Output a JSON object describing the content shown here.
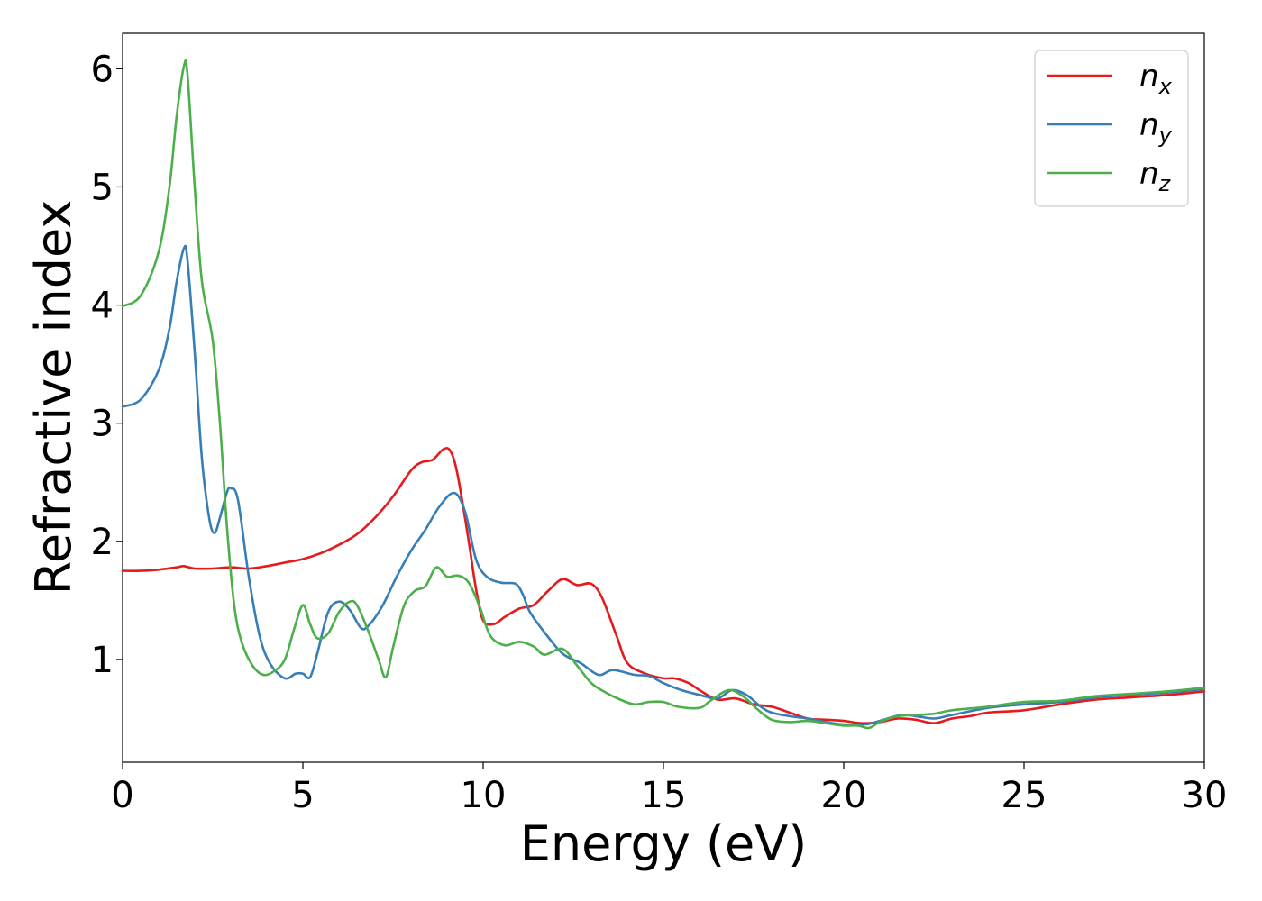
{
  "chart_data": {
    "type": "line",
    "title": "",
    "xlabel": "Energy (eV)",
    "ylabel": "Refractive index",
    "xlim": [
      0,
      30
    ],
    "ylim": [
      0.13,
      6.3
    ],
    "xticks": [
      0,
      5,
      10,
      15,
      20,
      25,
      30
    ],
    "yticks": [
      1,
      2,
      3,
      4,
      5,
      6
    ],
    "grid": false,
    "legend_position": "top-right",
    "series": [
      {
        "name": "n",
        "subscript": "x",
        "color": "#e41a1c",
        "points": [
          [
            0,
            1.75
          ],
          [
            0.5,
            1.75
          ],
          [
            1.0,
            1.76
          ],
          [
            1.5,
            1.78
          ],
          [
            1.7,
            1.79
          ],
          [
            2.0,
            1.77
          ],
          [
            2.5,
            1.77
          ],
          [
            3.0,
            1.78
          ],
          [
            3.5,
            1.77
          ],
          [
            4.0,
            1.79
          ],
          [
            4.5,
            1.82
          ],
          [
            5.0,
            1.85
          ],
          [
            5.5,
            1.9
          ],
          [
            6.0,
            1.97
          ],
          [
            6.5,
            2.06
          ],
          [
            7.0,
            2.2
          ],
          [
            7.5,
            2.38
          ],
          [
            8.0,
            2.6
          ],
          [
            8.3,
            2.67
          ],
          [
            8.6,
            2.69
          ],
          [
            8.9,
            2.78
          ],
          [
            9.1,
            2.76
          ],
          [
            9.3,
            2.55
          ],
          [
            9.6,
            2.0
          ],
          [
            9.8,
            1.6
          ],
          [
            10.0,
            1.33
          ],
          [
            10.3,
            1.3
          ],
          [
            10.6,
            1.36
          ],
          [
            11.0,
            1.43
          ],
          [
            11.4,
            1.46
          ],
          [
            11.8,
            1.58
          ],
          [
            12.2,
            1.68
          ],
          [
            12.6,
            1.63
          ],
          [
            13.0,
            1.64
          ],
          [
            13.3,
            1.52
          ],
          [
            13.7,
            1.2
          ],
          [
            14.0,
            0.97
          ],
          [
            14.5,
            0.88
          ],
          [
            15.0,
            0.84
          ],
          [
            15.3,
            0.84
          ],
          [
            15.7,
            0.8
          ],
          [
            16.0,
            0.74
          ],
          [
            16.5,
            0.66
          ],
          [
            17.0,
            0.67
          ],
          [
            17.5,
            0.62
          ],
          [
            18.0,
            0.6
          ],
          [
            18.5,
            0.55
          ],
          [
            19.0,
            0.5
          ],
          [
            19.5,
            0.49
          ],
          [
            20.0,
            0.48
          ],
          [
            20.5,
            0.46
          ],
          [
            21.0,
            0.47
          ],
          [
            21.5,
            0.5
          ],
          [
            22.0,
            0.49
          ],
          [
            22.5,
            0.46
          ],
          [
            23.0,
            0.5
          ],
          [
            23.5,
            0.52
          ],
          [
            24.0,
            0.55
          ],
          [
            25.0,
            0.57
          ],
          [
            26.0,
            0.62
          ],
          [
            27.0,
            0.66
          ],
          [
            28.0,
            0.68
          ],
          [
            29.0,
            0.7
          ],
          [
            30.0,
            0.73
          ]
        ]
      },
      {
        "name": "n",
        "subscript": "y",
        "color": "#377eb8",
        "points": [
          [
            0,
            3.14
          ],
          [
            0.5,
            3.2
          ],
          [
            1.0,
            3.45
          ],
          [
            1.3,
            3.8
          ],
          [
            1.5,
            4.2
          ],
          [
            1.7,
            4.48
          ],
          [
            1.8,
            4.38
          ],
          [
            2.0,
            3.6
          ],
          [
            2.2,
            2.7
          ],
          [
            2.4,
            2.2
          ],
          [
            2.55,
            2.07
          ],
          [
            2.7,
            2.2
          ],
          [
            2.9,
            2.42
          ],
          [
            3.0,
            2.45
          ],
          [
            3.2,
            2.35
          ],
          [
            3.5,
            1.7
          ],
          [
            3.8,
            1.2
          ],
          [
            4.1,
            0.96
          ],
          [
            4.5,
            0.84
          ],
          [
            4.8,
            0.88
          ],
          [
            5.0,
            0.88
          ],
          [
            5.2,
            0.85
          ],
          [
            5.4,
            1.05
          ],
          [
            5.7,
            1.4
          ],
          [
            6.0,
            1.49
          ],
          [
            6.3,
            1.42
          ],
          [
            6.6,
            1.27
          ],
          [
            6.8,
            1.28
          ],
          [
            7.2,
            1.45
          ],
          [
            7.6,
            1.7
          ],
          [
            8.0,
            1.92
          ],
          [
            8.4,
            2.1
          ],
          [
            8.8,
            2.3
          ],
          [
            9.2,
            2.41
          ],
          [
            9.5,
            2.25
          ],
          [
            9.8,
            1.85
          ],
          [
            10.1,
            1.7
          ],
          [
            10.5,
            1.65
          ],
          [
            10.9,
            1.64
          ],
          [
            11.1,
            1.55
          ],
          [
            11.3,
            1.4
          ],
          [
            11.7,
            1.23
          ],
          [
            12.2,
            1.05
          ],
          [
            12.7,
            0.97
          ],
          [
            13.2,
            0.87
          ],
          [
            13.6,
            0.91
          ],
          [
            14.2,
            0.87
          ],
          [
            14.6,
            0.86
          ],
          [
            15.0,
            0.8
          ],
          [
            15.5,
            0.74
          ],
          [
            16.0,
            0.7
          ],
          [
            16.5,
            0.67
          ],
          [
            16.9,
            0.74
          ],
          [
            17.3,
            0.7
          ],
          [
            17.7,
            0.6
          ],
          [
            18.0,
            0.55
          ],
          [
            18.5,
            0.52
          ],
          [
            19.0,
            0.5
          ],
          [
            19.5,
            0.47
          ],
          [
            20.0,
            0.45
          ],
          [
            20.6,
            0.45
          ],
          [
            21.0,
            0.48
          ],
          [
            21.6,
            0.53
          ],
          [
            22.0,
            0.52
          ],
          [
            22.5,
            0.5
          ],
          [
            23.0,
            0.53
          ],
          [
            24.0,
            0.59
          ],
          [
            25.0,
            0.62
          ],
          [
            26.0,
            0.64
          ],
          [
            27.0,
            0.68
          ],
          [
            28.0,
            0.7
          ],
          [
            29.0,
            0.72
          ],
          [
            30.0,
            0.75
          ]
        ]
      },
      {
        "name": "n",
        "subscript": "z",
        "color": "#4daf4a",
        "points": [
          [
            0,
            3.99
          ],
          [
            0.5,
            4.08
          ],
          [
            1.0,
            4.45
          ],
          [
            1.3,
            5.0
          ],
          [
            1.5,
            5.6
          ],
          [
            1.7,
            6.02
          ],
          [
            1.8,
            5.95
          ],
          [
            2.0,
            5.0
          ],
          [
            2.2,
            4.2
          ],
          [
            2.5,
            3.7
          ],
          [
            2.7,
            3.0
          ],
          [
            2.9,
            2.1
          ],
          [
            3.1,
            1.45
          ],
          [
            3.3,
            1.15
          ],
          [
            3.6,
            0.95
          ],
          [
            3.9,
            0.87
          ],
          [
            4.2,
            0.9
          ],
          [
            4.5,
            1.0
          ],
          [
            4.75,
            1.25
          ],
          [
            5.0,
            1.46
          ],
          [
            5.2,
            1.3
          ],
          [
            5.4,
            1.18
          ],
          [
            5.7,
            1.22
          ],
          [
            6.0,
            1.4
          ],
          [
            6.3,
            1.49
          ],
          [
            6.5,
            1.46
          ],
          [
            6.8,
            1.25
          ],
          [
            7.1,
            1.0
          ],
          [
            7.3,
            0.85
          ],
          [
            7.5,
            1.1
          ],
          [
            7.8,
            1.45
          ],
          [
            8.1,
            1.58
          ],
          [
            8.4,
            1.62
          ],
          [
            8.7,
            1.78
          ],
          [
            9.0,
            1.7
          ],
          [
            9.3,
            1.71
          ],
          [
            9.6,
            1.65
          ],
          [
            9.9,
            1.45
          ],
          [
            10.2,
            1.2
          ],
          [
            10.6,
            1.12
          ],
          [
            11.0,
            1.15
          ],
          [
            11.4,
            1.11
          ],
          [
            11.7,
            1.04
          ],
          [
            12.2,
            1.09
          ],
          [
            12.6,
            0.95
          ],
          [
            13.0,
            0.8
          ],
          [
            13.4,
            0.72
          ],
          [
            13.8,
            0.66
          ],
          [
            14.2,
            0.62
          ],
          [
            14.6,
            0.64
          ],
          [
            15.0,
            0.64
          ],
          [
            15.4,
            0.6
          ],
          [
            16.0,
            0.59
          ],
          [
            16.3,
            0.65
          ],
          [
            16.8,
            0.74
          ],
          [
            17.2,
            0.69
          ],
          [
            17.6,
            0.58
          ],
          [
            18.0,
            0.49
          ],
          [
            18.5,
            0.47
          ],
          [
            19.0,
            0.48
          ],
          [
            19.5,
            0.46
          ],
          [
            20.0,
            0.44
          ],
          [
            20.4,
            0.44
          ],
          [
            20.7,
            0.42
          ],
          [
            21.0,
            0.47
          ],
          [
            21.5,
            0.52
          ],
          [
            22.0,
            0.53
          ],
          [
            22.5,
            0.54
          ],
          [
            23.0,
            0.57
          ],
          [
            24.0,
            0.6
          ],
          [
            25.0,
            0.64
          ],
          [
            26.0,
            0.65
          ],
          [
            27.0,
            0.69
          ],
          [
            28.0,
            0.71
          ],
          [
            29.0,
            0.73
          ],
          [
            30.0,
            0.76
          ]
        ]
      }
    ]
  }
}
